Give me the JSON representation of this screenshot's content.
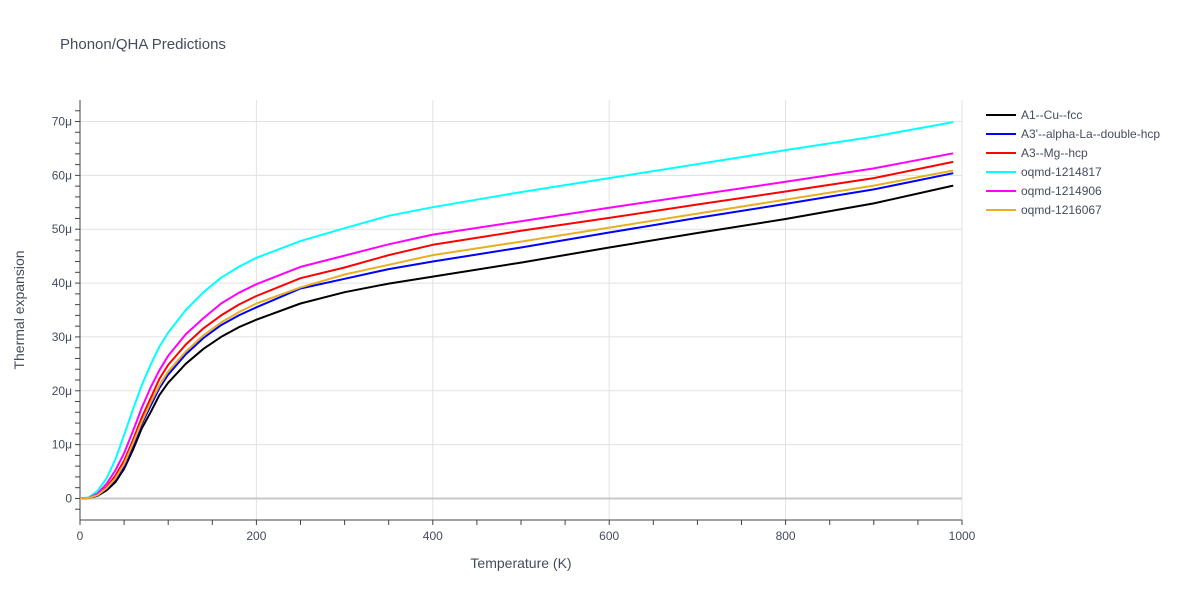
{
  "chart_data": {
    "type": "line",
    "title": "Phonon/QHA Predictions",
    "xlabel": "Temperature (K)",
    "ylabel": "Thermal expansion",
    "xlim": [
      0,
      1000
    ],
    "ylim": [
      -4e-06,
      7.4e-05
    ],
    "x_ticks": [
      0,
      200,
      400,
      600,
      800,
      1000
    ],
    "x_tick_labels": [
      "0",
      "200",
      "400",
      "600",
      "800",
      "1000"
    ],
    "y_ticks": [
      0,
      1e-05,
      2e-05,
      3e-05,
      4e-05,
      5e-05,
      6e-05,
      7e-05
    ],
    "y_tick_labels": [
      "0",
      "10μ",
      "20μ",
      "30μ",
      "40μ",
      "50μ",
      "60μ",
      "70μ"
    ],
    "grid": true,
    "legend_position": "top-right outside plot",
    "x": [
      0,
      10,
      20,
      30,
      40,
      50,
      60,
      70,
      80,
      90,
      100,
      120,
      140,
      160,
      180,
      200,
      250,
      300,
      350,
      400,
      500,
      600,
      700,
      800,
      900,
      990
    ],
    "series": [
      {
        "name": "A1--Cu--fcc",
        "color": "#000000",
        "values": [
          0,
          1e-07,
          5e-07,
          1.5e-06,
          3e-06,
          5.5e-06,
          9e-06,
          1.3e-05,
          1.6e-05,
          1.92e-05,
          2.15e-05,
          2.5e-05,
          2.78e-05,
          3e-05,
          3.18e-05,
          3.32e-05,
          3.62e-05,
          3.83e-05,
          3.99e-05,
          4.12e-05,
          4.38e-05,
          4.66e-05,
          4.93e-05,
          5.19e-05,
          5.48e-05,
          5.81e-05
        ]
      },
      {
        "name": "A3'--alpha-La--double-hcp",
        "color": "#0000ff",
        "values": [
          0,
          1e-07,
          6e-07,
          1.8e-06,
          3.5e-06,
          6e-06,
          9.8e-06,
          1.38e-05,
          1.72e-05,
          2.05e-05,
          2.3e-05,
          2.68e-05,
          2.98e-05,
          3.22e-05,
          3.4e-05,
          3.55e-05,
          3.9e-05,
          4.08e-05,
          4.26e-05,
          4.4e-05,
          4.66e-05,
          4.94e-05,
          5.21e-05,
          5.47e-05,
          5.74e-05,
          6.04e-05
        ]
      },
      {
        "name": "A3--Mg--hcp",
        "color": "#ff0000",
        "values": [
          0,
          1e-07,
          7e-07,
          2.1e-06,
          4.2e-06,
          7e-06,
          1.08e-05,
          1.5e-05,
          1.86e-05,
          2.22e-05,
          2.48e-05,
          2.86e-05,
          3.16e-05,
          3.4e-05,
          3.6e-05,
          3.76e-05,
          4.09e-05,
          4.29e-05,
          4.52e-05,
          4.71e-05,
          4.97e-05,
          5.21e-05,
          5.46e-05,
          5.7e-05,
          5.95e-05,
          6.25e-05
        ]
      },
      {
        "name": "oqmd-1214817",
        "color": "#00ffff",
        "values": [
          0,
          2e-07,
          1.4e-06,
          3.7e-06,
          7.2e-06,
          1.18e-05,
          1.65e-05,
          2.1e-05,
          2.48e-05,
          2.82e-05,
          3.08e-05,
          3.5e-05,
          3.83e-05,
          4.1e-05,
          4.3e-05,
          4.47e-05,
          4.78e-05,
          5.02e-05,
          5.25e-05,
          5.41e-05,
          5.69e-05,
          5.95e-05,
          6.21e-05,
          6.47e-05,
          6.72e-05,
          6.99e-05
        ]
      },
      {
        "name": "oqmd-1214906",
        "color": "#ff00ff",
        "values": [
          0,
          1e-07,
          9e-07,
          2.7e-06,
          5.2e-06,
          8.4e-06,
          1.25e-05,
          1.68e-05,
          2.06e-05,
          2.38e-05,
          2.65e-05,
          3.05e-05,
          3.35e-05,
          3.62e-05,
          3.82e-05,
          3.98e-05,
          4.3e-05,
          4.51e-05,
          4.72e-05,
          4.9e-05,
          5.15e-05,
          5.4e-05,
          5.64e-05,
          5.88e-05,
          6.13e-05,
          6.41e-05
        ]
      },
      {
        "name": "oqmd-1216067",
        "color": "#e6b022",
        "values": [
          0,
          1e-07,
          6e-07,
          1.9e-06,
          3.7e-06,
          6.4e-06,
          1.02e-05,
          1.42e-05,
          1.78e-05,
          2.1e-05,
          2.36e-05,
          2.73e-05,
          3.03e-05,
          3.27e-05,
          3.46e-05,
          3.62e-05,
          3.92e-05,
          4.16e-05,
          4.34e-05,
          4.52e-05,
          4.77e-05,
          5.03e-05,
          5.29e-05,
          5.55e-05,
          5.81e-05,
          6.09e-05
        ]
      }
    ]
  }
}
